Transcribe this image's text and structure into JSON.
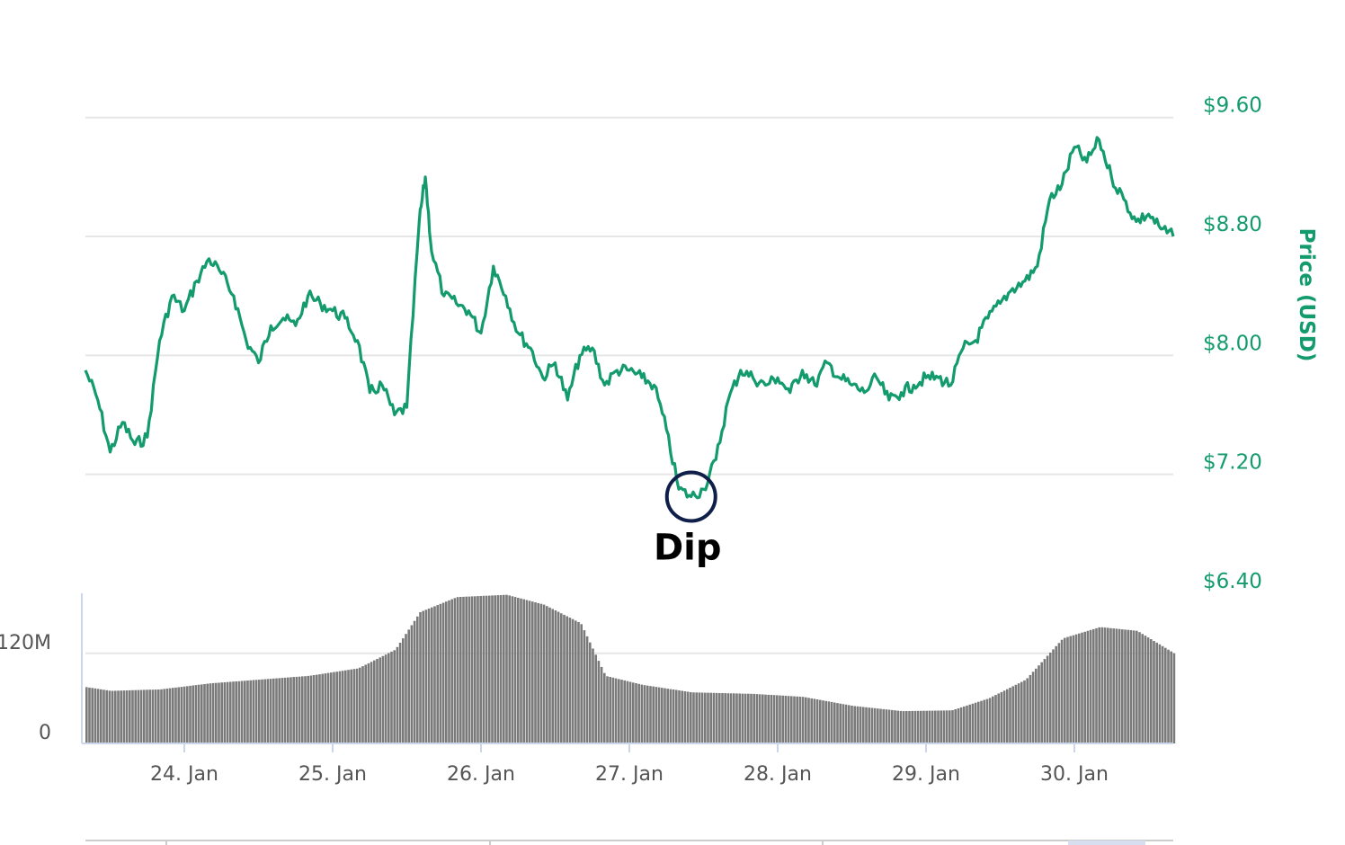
{
  "chart_data": {
    "type": "line",
    "title": "",
    "xlabel": "",
    "ylabel": "Price (USD)",
    "grid": true,
    "x_range": [
      "2020-01-23T08:00",
      "2020-01-30T16:00"
    ],
    "x_tick_labels": [
      "24. Jan",
      "25. Jan",
      "26. Jan",
      "27. Jan",
      "28. Jan",
      "29. Jan",
      "30. Jan"
    ],
    "y_tick_labels": [
      "$6.40",
      "$7.20",
      "$8.00",
      "$8.80",
      "$9.60"
    ],
    "y_ticks": [
      6.4,
      7.2,
      8.0,
      8.8,
      9.6
    ],
    "ylim": [
      6.4,
      10.1
    ],
    "colors": {
      "price": "#139b6e",
      "volume": "#7a7a7a",
      "grid": "#e6e6e6",
      "annotation_circle": "#0f1f4a"
    },
    "series": [
      {
        "name": "",
        "points": [
          [
            "2020-01-23T08:00",
            7.9
          ],
          [
            "2020-01-23T10:00",
            7.7
          ],
          [
            "2020-01-23T12:00",
            7.35
          ],
          [
            "2020-01-23T14:00",
            7.55
          ],
          [
            "2020-01-23T16:00",
            7.4
          ],
          [
            "2020-01-23T18:00",
            7.45
          ],
          [
            "2020-01-23T20:00",
            8.1
          ],
          [
            "2020-01-23T22:00",
            8.4
          ],
          [
            "2020-01-24T00:00",
            8.3
          ],
          [
            "2020-01-24T02:00",
            8.5
          ],
          [
            "2020-01-24T04:00",
            8.65
          ],
          [
            "2020-01-24T06:00",
            8.55
          ],
          [
            "2020-01-24T08:00",
            8.4
          ],
          [
            "2020-01-24T10:00",
            8.1
          ],
          [
            "2020-01-24T12:00",
            7.95
          ],
          [
            "2020-01-24T14:00",
            8.2
          ],
          [
            "2020-01-24T16:00",
            8.25
          ],
          [
            "2020-01-24T18:00",
            8.2
          ],
          [
            "2020-01-24T20:00",
            8.4
          ],
          [
            "2020-01-24T22:00",
            8.35
          ],
          [
            "2020-01-25T00:00",
            8.3
          ],
          [
            "2020-01-25T02:00",
            8.25
          ],
          [
            "2020-01-25T04:00",
            8.1
          ],
          [
            "2020-01-25T06:00",
            7.75
          ],
          [
            "2020-01-25T08:00",
            7.8
          ],
          [
            "2020-01-25T10:00",
            7.6
          ],
          [
            "2020-01-25T12:00",
            7.65
          ],
          [
            "2020-01-25T14:00",
            8.9
          ],
          [
            "2020-01-25T15:00",
            9.2
          ],
          [
            "2020-01-25T16:00",
            8.7
          ],
          [
            "2020-01-25T18:00",
            8.4
          ],
          [
            "2020-01-25T20:00",
            8.35
          ],
          [
            "2020-01-25T22:00",
            8.3
          ],
          [
            "2020-01-26T00:00",
            8.15
          ],
          [
            "2020-01-26T02:00",
            8.6
          ],
          [
            "2020-01-26T04:00",
            8.4
          ],
          [
            "2020-01-26T06:00",
            8.15
          ],
          [
            "2020-01-26T08:00",
            8.05
          ],
          [
            "2020-01-26T10:00",
            7.85
          ],
          [
            "2020-01-26T12:00",
            7.95
          ],
          [
            "2020-01-26T14:00",
            7.7
          ],
          [
            "2020-01-26T16:00",
            8.0
          ],
          [
            "2020-01-26T18:00",
            8.05
          ],
          [
            "2020-01-26T20:00",
            7.8
          ],
          [
            "2020-01-26T22:00",
            7.9
          ],
          [
            "2020-01-27T00:00",
            7.9
          ],
          [
            "2020-01-27T02:00",
            7.85
          ],
          [
            "2020-01-27T04:00",
            7.8
          ],
          [
            "2020-01-27T06:00",
            7.5
          ],
          [
            "2020-01-27T08:00",
            7.1
          ],
          [
            "2020-01-27T10:00",
            7.05
          ],
          [
            "2020-01-27T12:00",
            7.1
          ],
          [
            "2020-01-27T14:00",
            7.3
          ],
          [
            "2020-01-27T16:00",
            7.7
          ],
          [
            "2020-01-27T18:00",
            7.9
          ],
          [
            "2020-01-27T20:00",
            7.85
          ],
          [
            "2020-01-27T22:00",
            7.8
          ],
          [
            "2020-01-28T00:00",
            7.85
          ],
          [
            "2020-01-28T02:00",
            7.75
          ],
          [
            "2020-01-28T04:00",
            7.9
          ],
          [
            "2020-01-28T06:00",
            7.8
          ],
          [
            "2020-01-28T08:00",
            7.95
          ],
          [
            "2020-01-28T10:00",
            7.85
          ],
          [
            "2020-01-28T12:00",
            7.8
          ],
          [
            "2020-01-28T14:00",
            7.75
          ],
          [
            "2020-01-28T16:00",
            7.85
          ],
          [
            "2020-01-28T18:00",
            7.7
          ],
          [
            "2020-01-28T20:00",
            7.75
          ],
          [
            "2020-01-28T22:00",
            7.8
          ],
          [
            "2020-01-29T00:00",
            7.85
          ],
          [
            "2020-01-29T02:00",
            7.85
          ],
          [
            "2020-01-29T04:00",
            7.8
          ],
          [
            "2020-01-29T06:00",
            8.05
          ],
          [
            "2020-01-29T08:00",
            8.1
          ],
          [
            "2020-01-29T10:00",
            8.25
          ],
          [
            "2020-01-29T12:00",
            8.35
          ],
          [
            "2020-01-29T14:00",
            8.45
          ],
          [
            "2020-01-29T16:00",
            8.5
          ],
          [
            "2020-01-29T18:00",
            8.6
          ],
          [
            "2020-01-29T20:00",
            9.05
          ],
          [
            "2020-01-29T22:00",
            9.15
          ],
          [
            "2020-01-30T00:00",
            9.4
          ],
          [
            "2020-01-30T02:00",
            9.3
          ],
          [
            "2020-01-30T04:00",
            9.45
          ],
          [
            "2020-01-30T06:00",
            9.2
          ],
          [
            "2020-01-30T08:00",
            9.05
          ],
          [
            "2020-01-30T10:00",
            8.9
          ],
          [
            "2020-01-30T12:00",
            8.95
          ],
          [
            "2020-01-30T14:00",
            8.85
          ],
          [
            "2020-01-30T16:00",
            8.8
          ]
        ]
      }
    ],
    "volume": {
      "y_tick_labels": [
        "0",
        "120M"
      ],
      "y_ticks": [
        0,
        120000000
      ],
      "ylim": [
        0,
        200000000
      ],
      "points": [
        [
          "2020-01-23T08:00",
          75000000
        ],
        [
          "2020-01-23T12:00",
          70000000
        ],
        [
          "2020-01-23T20:00",
          72000000
        ],
        [
          "2020-01-24T04:00",
          80000000
        ],
        [
          "2020-01-24T12:00",
          85000000
        ],
        [
          "2020-01-24T20:00",
          90000000
        ],
        [
          "2020-01-25T04:00",
          100000000
        ],
        [
          "2020-01-25T10:00",
          125000000
        ],
        [
          "2020-01-25T14:00",
          175000000
        ],
        [
          "2020-01-25T20:00",
          195000000
        ],
        [
          "2020-01-26T04:00",
          198000000
        ],
        [
          "2020-01-26T10:00",
          185000000
        ],
        [
          "2020-01-26T16:00",
          160000000
        ],
        [
          "2020-01-26T20:00",
          90000000
        ],
        [
          "2020-01-27T02:00",
          78000000
        ],
        [
          "2020-01-27T10:00",
          68000000
        ],
        [
          "2020-01-27T20:00",
          66000000
        ],
        [
          "2020-01-28T04:00",
          62000000
        ],
        [
          "2020-01-28T12:00",
          50000000
        ],
        [
          "2020-01-28T20:00",
          43000000
        ],
        [
          "2020-01-29T04:00",
          44000000
        ],
        [
          "2020-01-29T10:00",
          60000000
        ],
        [
          "2020-01-29T16:00",
          85000000
        ],
        [
          "2020-01-29T22:00",
          140000000
        ],
        [
          "2020-01-30T04:00",
          155000000
        ],
        [
          "2020-01-30T10:00",
          150000000
        ],
        [
          "2020-01-30T16:00",
          120000000
        ]
      ]
    },
    "annotations": [
      {
        "label": "Dip",
        "x": "2020-01-27T10:00",
        "y": 7.05
      }
    ]
  }
}
